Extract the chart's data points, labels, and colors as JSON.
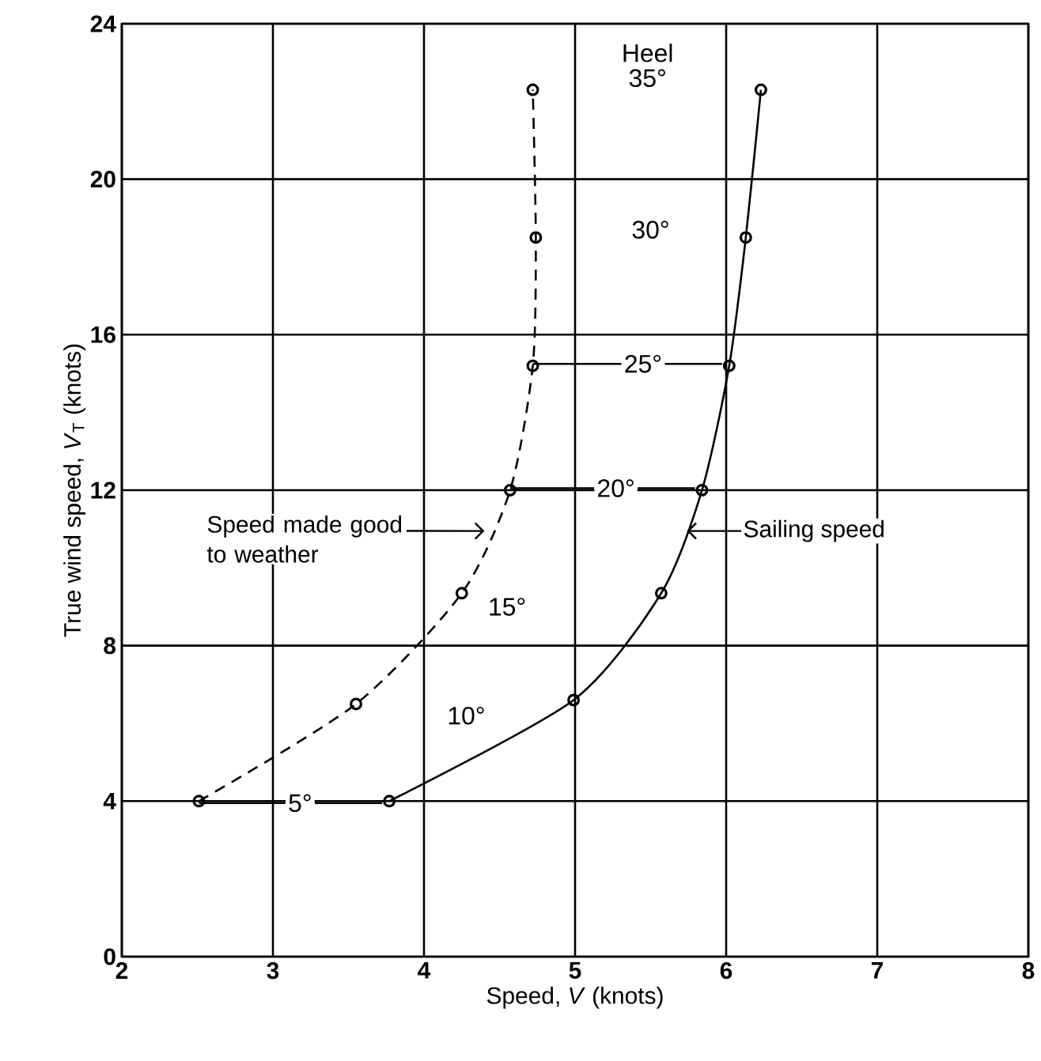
{
  "chart_data": {
    "type": "line",
    "xlabel": "Speed, *V* (knots)",
    "ylabel": "True wind speed, *V*$_{T}$ (knots)",
    "xlim": [
      2,
      8
    ],
    "ylim": [
      0,
      24
    ],
    "xticks": [
      2,
      3,
      4,
      5,
      6,
      7,
      8
    ],
    "yticks": [
      0,
      4,
      8,
      12,
      16,
      20,
      24
    ],
    "grid": true,
    "marker": "circle",
    "series": [
      {
        "name": "Speed made good to weather",
        "color": "#000000",
        "line_style": "dashed",
        "x": [
          2.51,
          3.55,
          4.25,
          4.57,
          4.72,
          4.74,
          4.72
        ],
        "values": [
          4.0,
          6.5,
          9.35,
          12.0,
          15.2,
          18.5,
          22.3
        ]
      },
      {
        "name": "Sailing speed",
        "color": "#000000",
        "line_style": "solid",
        "x": [
          3.77,
          4.99,
          5.57,
          5.84,
          6.02,
          6.13,
          6.23
        ],
        "values": [
          4.0,
          6.6,
          9.35,
          12.0,
          15.2,
          18.5,
          22.3
        ]
      }
    ],
    "annotations": [
      {
        "text": "Heel",
        "x": 5.48,
        "y": 23.25
      },
      {
        "text": "35°",
        "x": 5.48,
        "y": 22.6
      },
      {
        "text": "30°",
        "x": 5.5,
        "y": 18.7
      },
      {
        "text": "25°",
        "x": 5.45,
        "y": 15.25
      },
      {
        "text": "20°",
        "x": 5.27,
        "y": 12.05
      },
      {
        "text": "15°",
        "x": 4.55,
        "y": 9.0
      },
      {
        "text": "10°",
        "x": 4.28,
        "y": 6.2
      },
      {
        "text": "5°",
        "x": 3.18,
        "y": 3.95
      }
    ]
  }
}
